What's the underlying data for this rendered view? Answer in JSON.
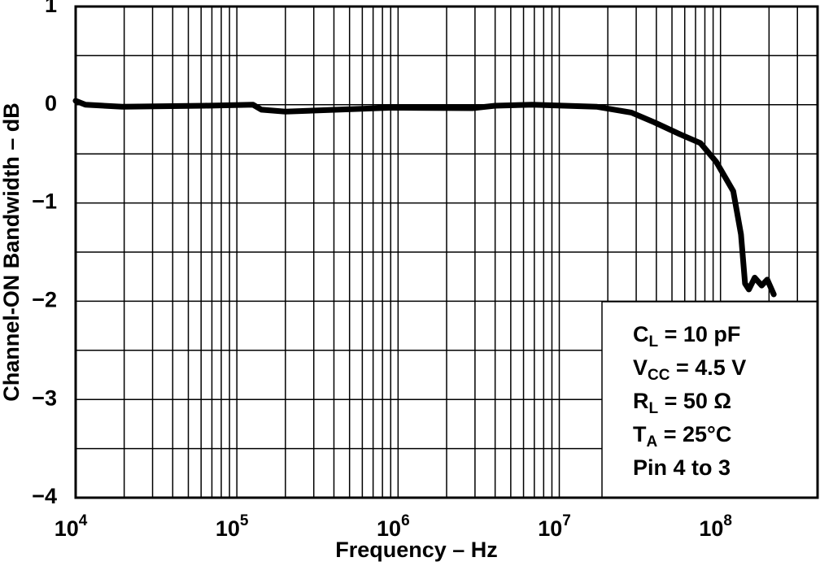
{
  "chart_data": {
    "type": "line",
    "x_label": "Frequency – Hz",
    "y_label": "Channel-ON Bandwidth – dB",
    "xlim": [
      10000,
      400000000
    ],
    "ylim": [
      -4,
      1
    ],
    "x_log": true,
    "grid": true,
    "xticks": [
      {
        "value": 10000,
        "label": "10",
        "exponent": "4"
      },
      {
        "value": 100000,
        "label": "10",
        "exponent": "5"
      },
      {
        "value": 1000000,
        "label": "10",
        "exponent": "6"
      },
      {
        "value": 10000000,
        "label": "10",
        "exponent": "7"
      },
      {
        "value": 100000000,
        "label": "10",
        "exponent": "8"
      }
    ],
    "yticks": [
      1,
      0,
      {
        "value": -1,
        "label": "−1"
      },
      {
        "value": -2,
        "label": "−2"
      },
      {
        "value": -3,
        "label": "−3"
      },
      {
        "value": -4,
        "label": "−4"
      }
    ],
    "series": [
      {
        "color": "#000000",
        "x": [
          10000,
          11500,
          19500,
          63000,
          126000,
          142000,
          200000,
          920000,
          2900000,
          4000000,
          6800000,
          17000000,
          28000000,
          39000000,
          56000000,
          75000000,
          94000000,
          120000000,
          134000000,
          142000000,
          150000000,
          163000000,
          180000000,
          195000000,
          214000000
        ],
        "values": [
          0.04,
          0.0,
          -0.02,
          -0.01,
          0.0,
          -0.05,
          -0.07,
          -0.03,
          -0.035,
          -0.01,
          0.0,
          -0.02,
          -0.08,
          -0.18,
          -0.3,
          -0.39,
          -0.58,
          -0.88,
          -1.32,
          -1.82,
          -1.88,
          -1.76,
          -1.84,
          -1.78,
          -1.93
        ]
      }
    ],
    "annotations": [
      {
        "main": "C",
        "sub": "L",
        "rest": " = 10 pF"
      },
      {
        "main": "V",
        "sub": "CC",
        "rest": " = 4.5 V"
      },
      {
        "main": "R",
        "sub": "L",
        "rest": " = 50 Ω"
      },
      {
        "main": "T",
        "sub": "A",
        "rest": " = 25°C"
      },
      {
        "main": "Pin 4 to 3"
      }
    ]
  }
}
